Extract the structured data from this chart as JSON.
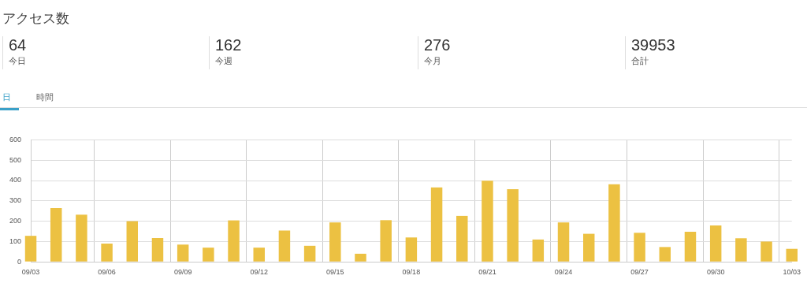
{
  "chart_data": {
    "type": "bar",
    "title": "アクセス数",
    "annotations": [
      "64",
      "今日",
      "162",
      "今週",
      "276",
      "今月",
      "39953",
      "合計",
      "日",
      "時間"
    ],
    "categories": [
      "09/03",
      null,
      null,
      "09/06",
      null,
      null,
      "09/09",
      null,
      null,
      "09/12",
      null,
      null,
      "09/15",
      null,
      null,
      "09/18",
      null,
      null,
      "09/21",
      null,
      null,
      "09/24",
      null,
      null,
      "09/27",
      null,
      null,
      "09/30",
      null,
      null,
      "10/03"
    ],
    "values": [
      128,
      264,
      232,
      90,
      200,
      117,
      85,
      70,
      204,
      70,
      154,
      79,
      194,
      40,
      205,
      120,
      366,
      226,
      399,
      357,
      110,
      194,
      138,
      382,
      143,
      73,
      148,
      179,
      116,
      100,
      64
    ],
    "color": "#ecc142",
    "ylim": [
      0,
      600
    ],
    "yticks": [
      0,
      100,
      200,
      300,
      400,
      500,
      600
    ],
    "grid": true,
    "legend": false
  }
}
